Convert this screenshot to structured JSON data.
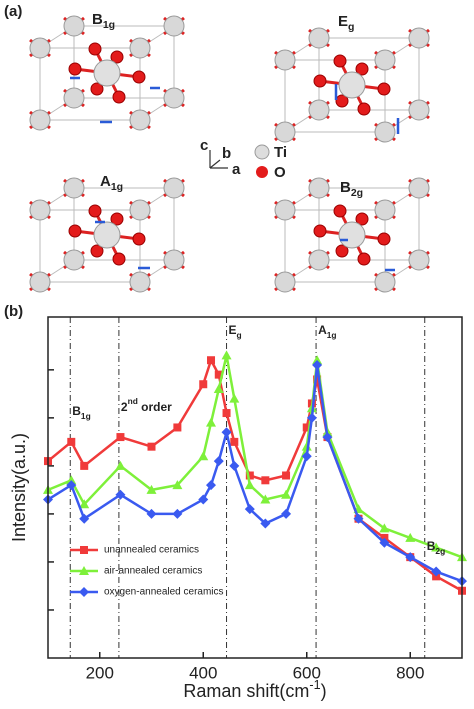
{
  "panel_a": {
    "panel_label": "(a)",
    "modes": [
      {
        "text": "B",
        "sub": "1g"
      },
      {
        "text": "E",
        "sub": "g"
      },
      {
        "text": "A",
        "sub": "1g"
      },
      {
        "text": "B",
        "sub": "2g"
      }
    ],
    "axes": [
      "c",
      "b",
      "a"
    ],
    "atoms": [
      "Ti",
      "O"
    ]
  },
  "chart_data": {
    "type": "line",
    "panel_label": "(b)",
    "x_label": {
      "text": "Raman shift(cm",
      "sup": "-1",
      "after": ")"
    },
    "y_label": "Intensity(a.u.)",
    "x": [
      100,
      145,
      170,
      240,
      300,
      350,
      400,
      415,
      430,
      445,
      460,
      490,
      520,
      560,
      600,
      610,
      620,
      640,
      700,
      750,
      800,
      850,
      900
    ],
    "series": [
      {
        "name": "unannealed ceramics",
        "color": "#f03a3a",
        "marker": "square",
        "values": [
          4.1,
          4.5,
          4.0,
          4.6,
          4.4,
          4.8,
          5.7,
          6.2,
          5.9,
          5.1,
          4.5,
          3.8,
          3.7,
          3.8,
          4.8,
          5.3,
          5.8,
          4.6,
          2.9,
          2.5,
          2.1,
          1.7,
          1.4
        ]
      },
      {
        "name": "air-annealed ceramics",
        "color": "#7ef03a",
        "marker": "triangle",
        "values": [
          3.5,
          3.7,
          3.2,
          4.0,
          3.5,
          3.6,
          4.2,
          4.9,
          5.6,
          6.3,
          5.4,
          3.6,
          3.3,
          3.4,
          4.4,
          5.2,
          6.2,
          4.7,
          3.1,
          2.7,
          2.5,
          2.3,
          2.1
        ]
      },
      {
        "name": "oxygen-annealed ceramics",
        "color": "#3a5af0",
        "marker": "diamond",
        "values": [
          3.3,
          3.6,
          2.9,
          3.4,
          3.0,
          3.0,
          3.3,
          3.6,
          4.1,
          4.7,
          4.0,
          3.1,
          2.8,
          3.0,
          4.2,
          5.0,
          6.1,
          4.6,
          2.9,
          2.4,
          2.1,
          1.8,
          1.6
        ]
      }
    ],
    "xlim": [
      100,
      900
    ],
    "xticks": [
      200,
      400,
      600,
      800
    ],
    "ylim": [
      0,
      7.1
    ],
    "yticks": [
      1,
      2,
      3,
      4,
      5,
      6
    ],
    "annotations": [
      {
        "x": 143,
        "label": {
          "text": "B",
          "sub": "1g"
        }
      },
      {
        "x": 237,
        "label": {
          "text": "2",
          "sup": "nd",
          "after": " order"
        }
      },
      {
        "x": 445,
        "label": {
          "text": "E",
          "sub": "g"
        }
      },
      {
        "x": 618,
        "label": {
          "text": "A",
          "sub": "1g"
        }
      },
      {
        "x": 828,
        "label": {
          "text": "B",
          "sub": "2g"
        }
      }
    ],
    "legend": "lower left"
  }
}
